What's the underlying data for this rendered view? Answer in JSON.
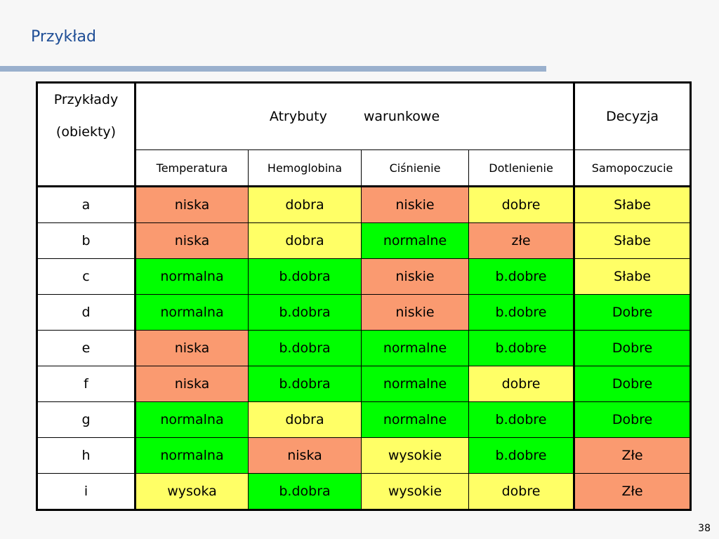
{
  "title": "Przykład",
  "page_number": "38",
  "colors": {
    "title": "#1f4e96",
    "rule": "#9ab0cd",
    "red": "#fa9a70",
    "yellow": "#ffff66",
    "green": "#00ff00",
    "white": "#ffffff"
  },
  "table": {
    "header": {
      "examples_line1": "Przykłady",
      "examples_line2": "(obiekty)",
      "attributes_word1": "Atrybuty",
      "attributes_word2": "warunkowe",
      "decision": "Decyzja"
    },
    "columns": [
      "Temperatura",
      "Hemoglobina",
      "Ciśnienie",
      "Dotlenienie",
      "Samopoczucie"
    ],
    "rows": [
      {
        "id": "a",
        "cells": [
          {
            "value": "niska",
            "color": "red"
          },
          {
            "value": "dobra",
            "color": "yellow"
          },
          {
            "value": "niskie",
            "color": "red"
          },
          {
            "value": "dobre",
            "color": "yellow"
          },
          {
            "value": "Słabe",
            "color": "yellow"
          }
        ]
      },
      {
        "id": "b",
        "cells": [
          {
            "value": "niska",
            "color": "red"
          },
          {
            "value": "dobra",
            "color": "yellow"
          },
          {
            "value": "normalne",
            "color": "green"
          },
          {
            "value": "złe",
            "color": "red"
          },
          {
            "value": "Słabe",
            "color": "yellow"
          }
        ]
      },
      {
        "id": "c",
        "cells": [
          {
            "value": "normalna",
            "color": "green"
          },
          {
            "value": "b.dobra",
            "color": "green"
          },
          {
            "value": "niskie",
            "color": "red"
          },
          {
            "value": "b.dobre",
            "color": "green"
          },
          {
            "value": "Słabe",
            "color": "yellow"
          }
        ]
      },
      {
        "id": "d",
        "cells": [
          {
            "value": "normalna",
            "color": "green"
          },
          {
            "value": "b.dobra",
            "color": "green"
          },
          {
            "value": "niskie",
            "color": "red"
          },
          {
            "value": "b.dobre",
            "color": "green"
          },
          {
            "value": "Dobre",
            "color": "green"
          }
        ]
      },
      {
        "id": "e",
        "cells": [
          {
            "value": "niska",
            "color": "red"
          },
          {
            "value": "b.dobra",
            "color": "green"
          },
          {
            "value": "normalne",
            "color": "green"
          },
          {
            "value": "b.dobre",
            "color": "green"
          },
          {
            "value": "Dobre",
            "color": "green"
          }
        ]
      },
      {
        "id": "f",
        "cells": [
          {
            "value": "niska",
            "color": "red"
          },
          {
            "value": "b.dobra",
            "color": "green"
          },
          {
            "value": "normalne",
            "color": "green"
          },
          {
            "value": "dobre",
            "color": "yellow"
          },
          {
            "value": "Dobre",
            "color": "green"
          }
        ]
      },
      {
        "id": "g",
        "cells": [
          {
            "value": "normalna",
            "color": "green"
          },
          {
            "value": "dobra",
            "color": "yellow"
          },
          {
            "value": "normalne",
            "color": "green"
          },
          {
            "value": "b.dobre",
            "color": "green"
          },
          {
            "value": "Dobre",
            "color": "green"
          }
        ]
      },
      {
        "id": "h",
        "cells": [
          {
            "value": "normalna",
            "color": "green"
          },
          {
            "value": "niska",
            "color": "red"
          },
          {
            "value": "wysokie",
            "color": "yellow"
          },
          {
            "value": "b.dobre",
            "color": "green"
          },
          {
            "value": "Złe",
            "color": "red"
          }
        ]
      },
      {
        "id": "i",
        "cells": [
          {
            "value": "wysoka",
            "color": "yellow"
          },
          {
            "value": "b.dobra",
            "color": "green"
          },
          {
            "value": "wysokie",
            "color": "yellow"
          },
          {
            "value": "dobre",
            "color": "yellow"
          },
          {
            "value": "Złe",
            "color": "red"
          }
        ]
      }
    ]
  }
}
